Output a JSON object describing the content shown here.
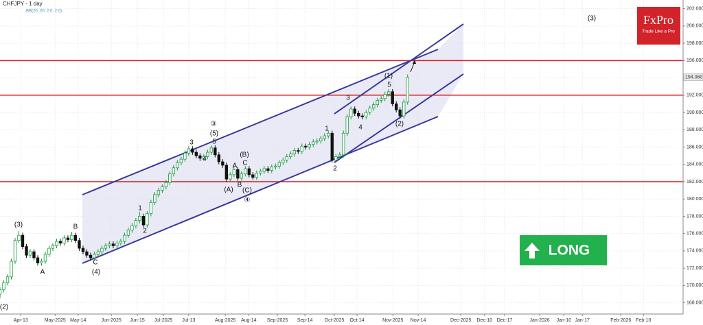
{
  "chart_data": {
    "type": "candlestick",
    "title": "CHFJPY - 1 day",
    "subtitle": "BB(20, 20, 2.0, 2.0)",
    "up_color": "#1a9a3a",
    "down_color": "#111111",
    "level_color": "#e0161b",
    "grid": true,
    "open": [
      169.0,
      169.5,
      170.3,
      171.0,
      172.8,
      175.2,
      175.8,
      174.5,
      173.5,
      173.9,
      173.2,
      172.6,
      172.8,
      173.6,
      174.3,
      174.6,
      175.1,
      174.9,
      175.5,
      175.3,
      175.8,
      175.2,
      174.3,
      173.9,
      173.5,
      173.2,
      173.6,
      173.9,
      174.3,
      174.6,
      174.8,
      174.6,
      174.9,
      175.1,
      175.8,
      176.4,
      176.9,
      177.5,
      178.0,
      177.0,
      178.3,
      179.6,
      180.5,
      181.0,
      181.4,
      181.9,
      182.9,
      183.6,
      184.2,
      184.6,
      185.3,
      185.8,
      185.4,
      185.0,
      184.7,
      184.9,
      185.4,
      185.9,
      185.1,
      184.3,
      183.9,
      182.3,
      182.8,
      183.4,
      182.4,
      182.9,
      183.5,
      182.8,
      182.5,
      183.0,
      183.2,
      183.5,
      183.3,
      183.7,
      183.8,
      184.2,
      184.5,
      184.9,
      185.2,
      185.6,
      185.5,
      186.1,
      186.0,
      186.3,
      186.6,
      186.7,
      187.0,
      187.3,
      187.6,
      184.5,
      184.9,
      185.1,
      187.6,
      189.5,
      190.4,
      189.9,
      189.6,
      189.5,
      190.0,
      190.5,
      190.9,
      191.4,
      191.6,
      192.1,
      192.4,
      191.0,
      190.3,
      189.6,
      191.2
    ],
    "high": [
      169.8,
      170.6,
      171.3,
      173.1,
      175.5,
      176.3,
      176.1,
      174.8,
      174.2,
      174.2,
      173.5,
      173.1,
      173.9,
      174.6,
      174.9,
      175.4,
      175.4,
      175.8,
      175.8,
      176.2,
      176.1,
      175.5,
      174.6,
      174.2,
      173.8,
      173.9,
      174.2,
      174.6,
      174.9,
      175.1,
      175.1,
      175.2,
      175.4,
      176.1,
      176.7,
      177.2,
      177.8,
      178.5,
      178.3,
      178.6,
      179.9,
      180.8,
      181.3,
      181.7,
      182.2,
      183.2,
      183.9,
      184.5,
      184.9,
      185.6,
      186.1,
      186.1,
      185.7,
      185.3,
      185.2,
      185.7,
      186.2,
      186.2,
      185.4,
      184.6,
      184.2,
      183.1,
      183.7,
      183.7,
      183.2,
      183.8,
      183.8,
      183.1,
      183.3,
      183.5,
      183.8,
      183.8,
      184.0,
      184.1,
      184.5,
      184.8,
      185.2,
      185.5,
      185.9,
      185.9,
      186.4,
      186.4,
      186.6,
      186.9,
      187.0,
      187.3,
      187.6,
      187.9,
      187.9,
      185.2,
      185.4,
      187.9,
      189.8,
      190.7,
      190.7,
      190.2,
      189.9,
      190.3,
      190.8,
      191.2,
      191.7,
      191.9,
      192.4,
      192.7,
      192.7,
      191.3,
      190.6,
      191.5,
      194.4
    ],
    "low": [
      168.5,
      169.2,
      170.0,
      170.7,
      172.5,
      174.9,
      174.2,
      173.2,
      173.2,
      172.9,
      172.3,
      172.3,
      172.5,
      173.3,
      174.0,
      174.3,
      174.6,
      174.6,
      175.0,
      175.0,
      174.9,
      174.0,
      173.6,
      173.2,
      172.9,
      172.9,
      173.3,
      173.6,
      174.0,
      174.3,
      174.3,
      174.3,
      174.6,
      174.8,
      175.5,
      176.1,
      176.6,
      177.2,
      176.7,
      176.7,
      178.0,
      179.3,
      180.2,
      180.7,
      181.1,
      181.6,
      182.6,
      183.3,
      183.9,
      184.3,
      185.0,
      185.1,
      184.7,
      184.4,
      184.4,
      184.6,
      185.1,
      184.8,
      184.0,
      183.6,
      182.0,
      182.0,
      182.5,
      182.1,
      182.1,
      182.6,
      182.5,
      182.2,
      182.2,
      182.7,
      182.9,
      183.0,
      183.0,
      183.4,
      183.5,
      183.9,
      184.2,
      184.6,
      184.9,
      185.2,
      185.2,
      185.7,
      185.7,
      186.0,
      186.3,
      186.4,
      186.7,
      187.0,
      184.2,
      184.2,
      184.6,
      184.8,
      187.3,
      189.2,
      189.6,
      189.3,
      189.2,
      189.2,
      189.7,
      190.2,
      190.6,
      191.1,
      191.3,
      191.8,
      190.7,
      190.0,
      189.3,
      189.3,
      190.9
    ],
    "close": [
      169.5,
      170.3,
      171.0,
      172.8,
      175.2,
      175.8,
      174.5,
      173.5,
      173.9,
      173.2,
      172.6,
      172.8,
      173.6,
      174.3,
      174.6,
      175.1,
      174.9,
      175.5,
      175.3,
      175.8,
      175.2,
      174.3,
      173.9,
      173.5,
      173.2,
      173.6,
      173.9,
      174.3,
      174.6,
      174.8,
      174.6,
      174.9,
      175.1,
      175.8,
      176.4,
      176.9,
      177.5,
      178.0,
      177.0,
      178.3,
      179.6,
      180.5,
      181.0,
      181.4,
      181.9,
      182.9,
      183.6,
      184.2,
      184.6,
      185.3,
      185.8,
      185.4,
      185.0,
      184.7,
      184.9,
      185.4,
      185.9,
      185.1,
      184.3,
      183.9,
      182.3,
      182.8,
      183.4,
      182.4,
      182.9,
      183.5,
      182.8,
      182.5,
      183.0,
      183.2,
      183.5,
      183.3,
      183.7,
      183.8,
      184.2,
      184.5,
      184.9,
      185.2,
      185.6,
      185.5,
      186.1,
      186.0,
      186.3,
      186.6,
      186.7,
      187.0,
      187.3,
      187.6,
      184.5,
      184.9,
      185.1,
      187.6,
      189.5,
      190.4,
      189.9,
      189.6,
      189.5,
      190.0,
      190.5,
      190.9,
      191.4,
      191.6,
      192.1,
      192.4,
      191.0,
      190.3,
      189.6,
      191.2,
      194.06
    ],
    "last_price": {
      "value": 194.06,
      "label": "194.060"
    },
    "levels": [
      196,
      192,
      182
    ],
    "xlim": [
      0,
      181
    ],
    "ylim": [
      166.7,
      203
    ],
    "xticks": [
      {
        "value": 5.5,
        "label": "Apr-13"
      },
      {
        "value": 14.6,
        "label": "May-2025"
      },
      {
        "value": 20.7,
        "label": "May-14"
      },
      {
        "value": 29.5,
        "label": "Jun-2025"
      },
      {
        "value": 36.4,
        "label": "Jun-15"
      },
      {
        "value": 43.3,
        "label": "Jul-2025"
      },
      {
        "value": 50,
        "label": "Jul-13"
      },
      {
        "value": 59.7,
        "label": "Aug-2025"
      },
      {
        "value": 65.9,
        "label": "Aug-14"
      },
      {
        "value": 73.5,
        "label": "Sep-2025"
      },
      {
        "value": 80.8,
        "label": "Sep-14"
      },
      {
        "value": 88.6,
        "label": "Oct-2025"
      },
      {
        "value": 94.6,
        "label": "Oct-14"
      },
      {
        "value": 104.1,
        "label": "Nov-2025"
      },
      {
        "value": 110.8,
        "label": "Nov-14"
      },
      {
        "value": 122.1,
        "label": "Dec-2025"
      },
      {
        "value": 128.4,
        "label": "Dec-10"
      },
      {
        "value": 133.7,
        "label": "Dec-17"
      },
      {
        "value": 143,
        "label": "Jan-2026"
      },
      {
        "value": 149.4,
        "label": "Jan-10"
      },
      {
        "value": 154.3,
        "label": "Jan-17"
      },
      {
        "value": 164.5,
        "label": "Feb-2026"
      },
      {
        "value": 170.5,
        "label": "Feb-10"
      }
    ],
    "yticks": [
      {
        "value": 168,
        "label": "168.000"
      },
      {
        "value": 170,
        "label": "170.000"
      },
      {
        "value": 172,
        "label": "172.000"
      },
      {
        "value": 174,
        "label": "174.000"
      },
      {
        "value": 176,
        "label": "176.000"
      },
      {
        "value": 178,
        "label": "178.000"
      },
      {
        "value": 180,
        "label": "180.000"
      },
      {
        "value": 182,
        "label": "182.000"
      },
      {
        "value": 184,
        "label": "184.000"
      },
      {
        "value": 186,
        "label": "186.000"
      },
      {
        "value": 188,
        "label": "188.000"
      },
      {
        "value": 190,
        "label": "190.000"
      },
      {
        "value": 192,
        "label": "192.000"
      },
      {
        "value": 194,
        "label": "194.000"
      },
      {
        "value": 196,
        "label": "196.000"
      },
      {
        "value": 198,
        "label": "198.000"
      },
      {
        "value": 200,
        "label": "200.000"
      },
      {
        "value": 202,
        "label": "202.000"
      }
    ],
    "annotations": [
      "(2)",
      "(3)",
      "A",
      "B",
      "C",
      "(4)",
      "1",
      "2",
      "3",
      "③",
      "(5)",
      "5",
      "4",
      "(B)",
      "A",
      "C",
      "B",
      "(A)",
      "(C)",
      "④",
      "1",
      "2",
      "3",
      "4",
      "5",
      "(1)",
      "(2)",
      "(3)"
    ],
    "brand": {
      "name": "FxPro",
      "tagline": "Trade Like a Pro"
    },
    "signal": "LONG"
  }
}
